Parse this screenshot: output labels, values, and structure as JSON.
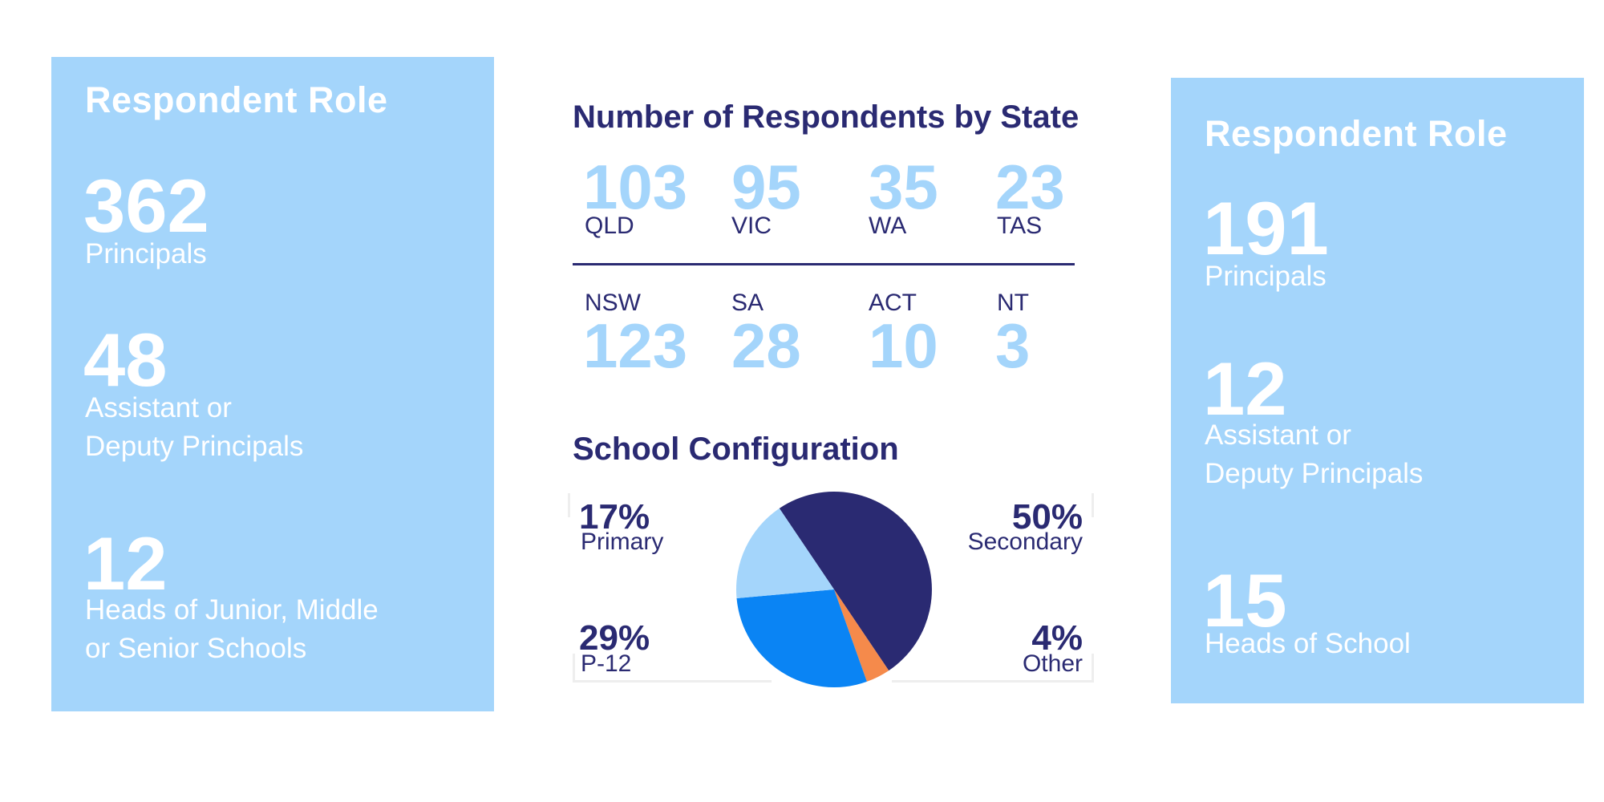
{
  "left_panel": {
    "title": "Respondent Role",
    "stats": [
      {
        "value": "362",
        "label": "Principals"
      },
      {
        "value": "48",
        "label": "Assistant or\nDeputy Principals"
      },
      {
        "value": "12",
        "label": "Heads of Junior, Middle\nor Senior Schools"
      }
    ]
  },
  "right_panel": {
    "title": "Respondent Role",
    "stats": [
      {
        "value": "191",
        "label": "Principals"
      },
      {
        "value": "12",
        "label": "Assistant or\nDeputy Principals"
      },
      {
        "value": "15",
        "label": "Heads of School"
      }
    ]
  },
  "states": {
    "title": "Number of Respondents by State",
    "top_row": [
      {
        "value": "103",
        "code": "QLD"
      },
      {
        "value": "95",
        "code": "VIC"
      },
      {
        "value": "35",
        "code": "WA"
      },
      {
        "value": "23",
        "code": "TAS"
      }
    ],
    "bottom_row": [
      {
        "value": "123",
        "code": "NSW"
      },
      {
        "value": "28",
        "code": "SA"
      },
      {
        "value": "10",
        "code": "ACT"
      },
      {
        "value": "3",
        "code": "NT"
      }
    ]
  },
  "colors": {
    "panel": "#a4d5fb",
    "navy": "#2a2a72",
    "light_blue": "#a4d5fb",
    "bright_blue": "#0a84f4",
    "orange": "#f58a4b"
  },
  "chart_data": {
    "type": "pie",
    "title": "School Configuration",
    "slices": [
      {
        "label": "Secondary",
        "percent_label": "50%",
        "value": 50,
        "color": "#2a2a72"
      },
      {
        "label": "Other",
        "percent_label": "4%",
        "value": 4,
        "color": "#f58a4b"
      },
      {
        "label": "P-12",
        "percent_label": "29%",
        "value": 29,
        "color": "#0a84f4"
      },
      {
        "label": "Primary",
        "percent_label": "17%",
        "value": 17,
        "color": "#a4d5fb"
      }
    ]
  }
}
